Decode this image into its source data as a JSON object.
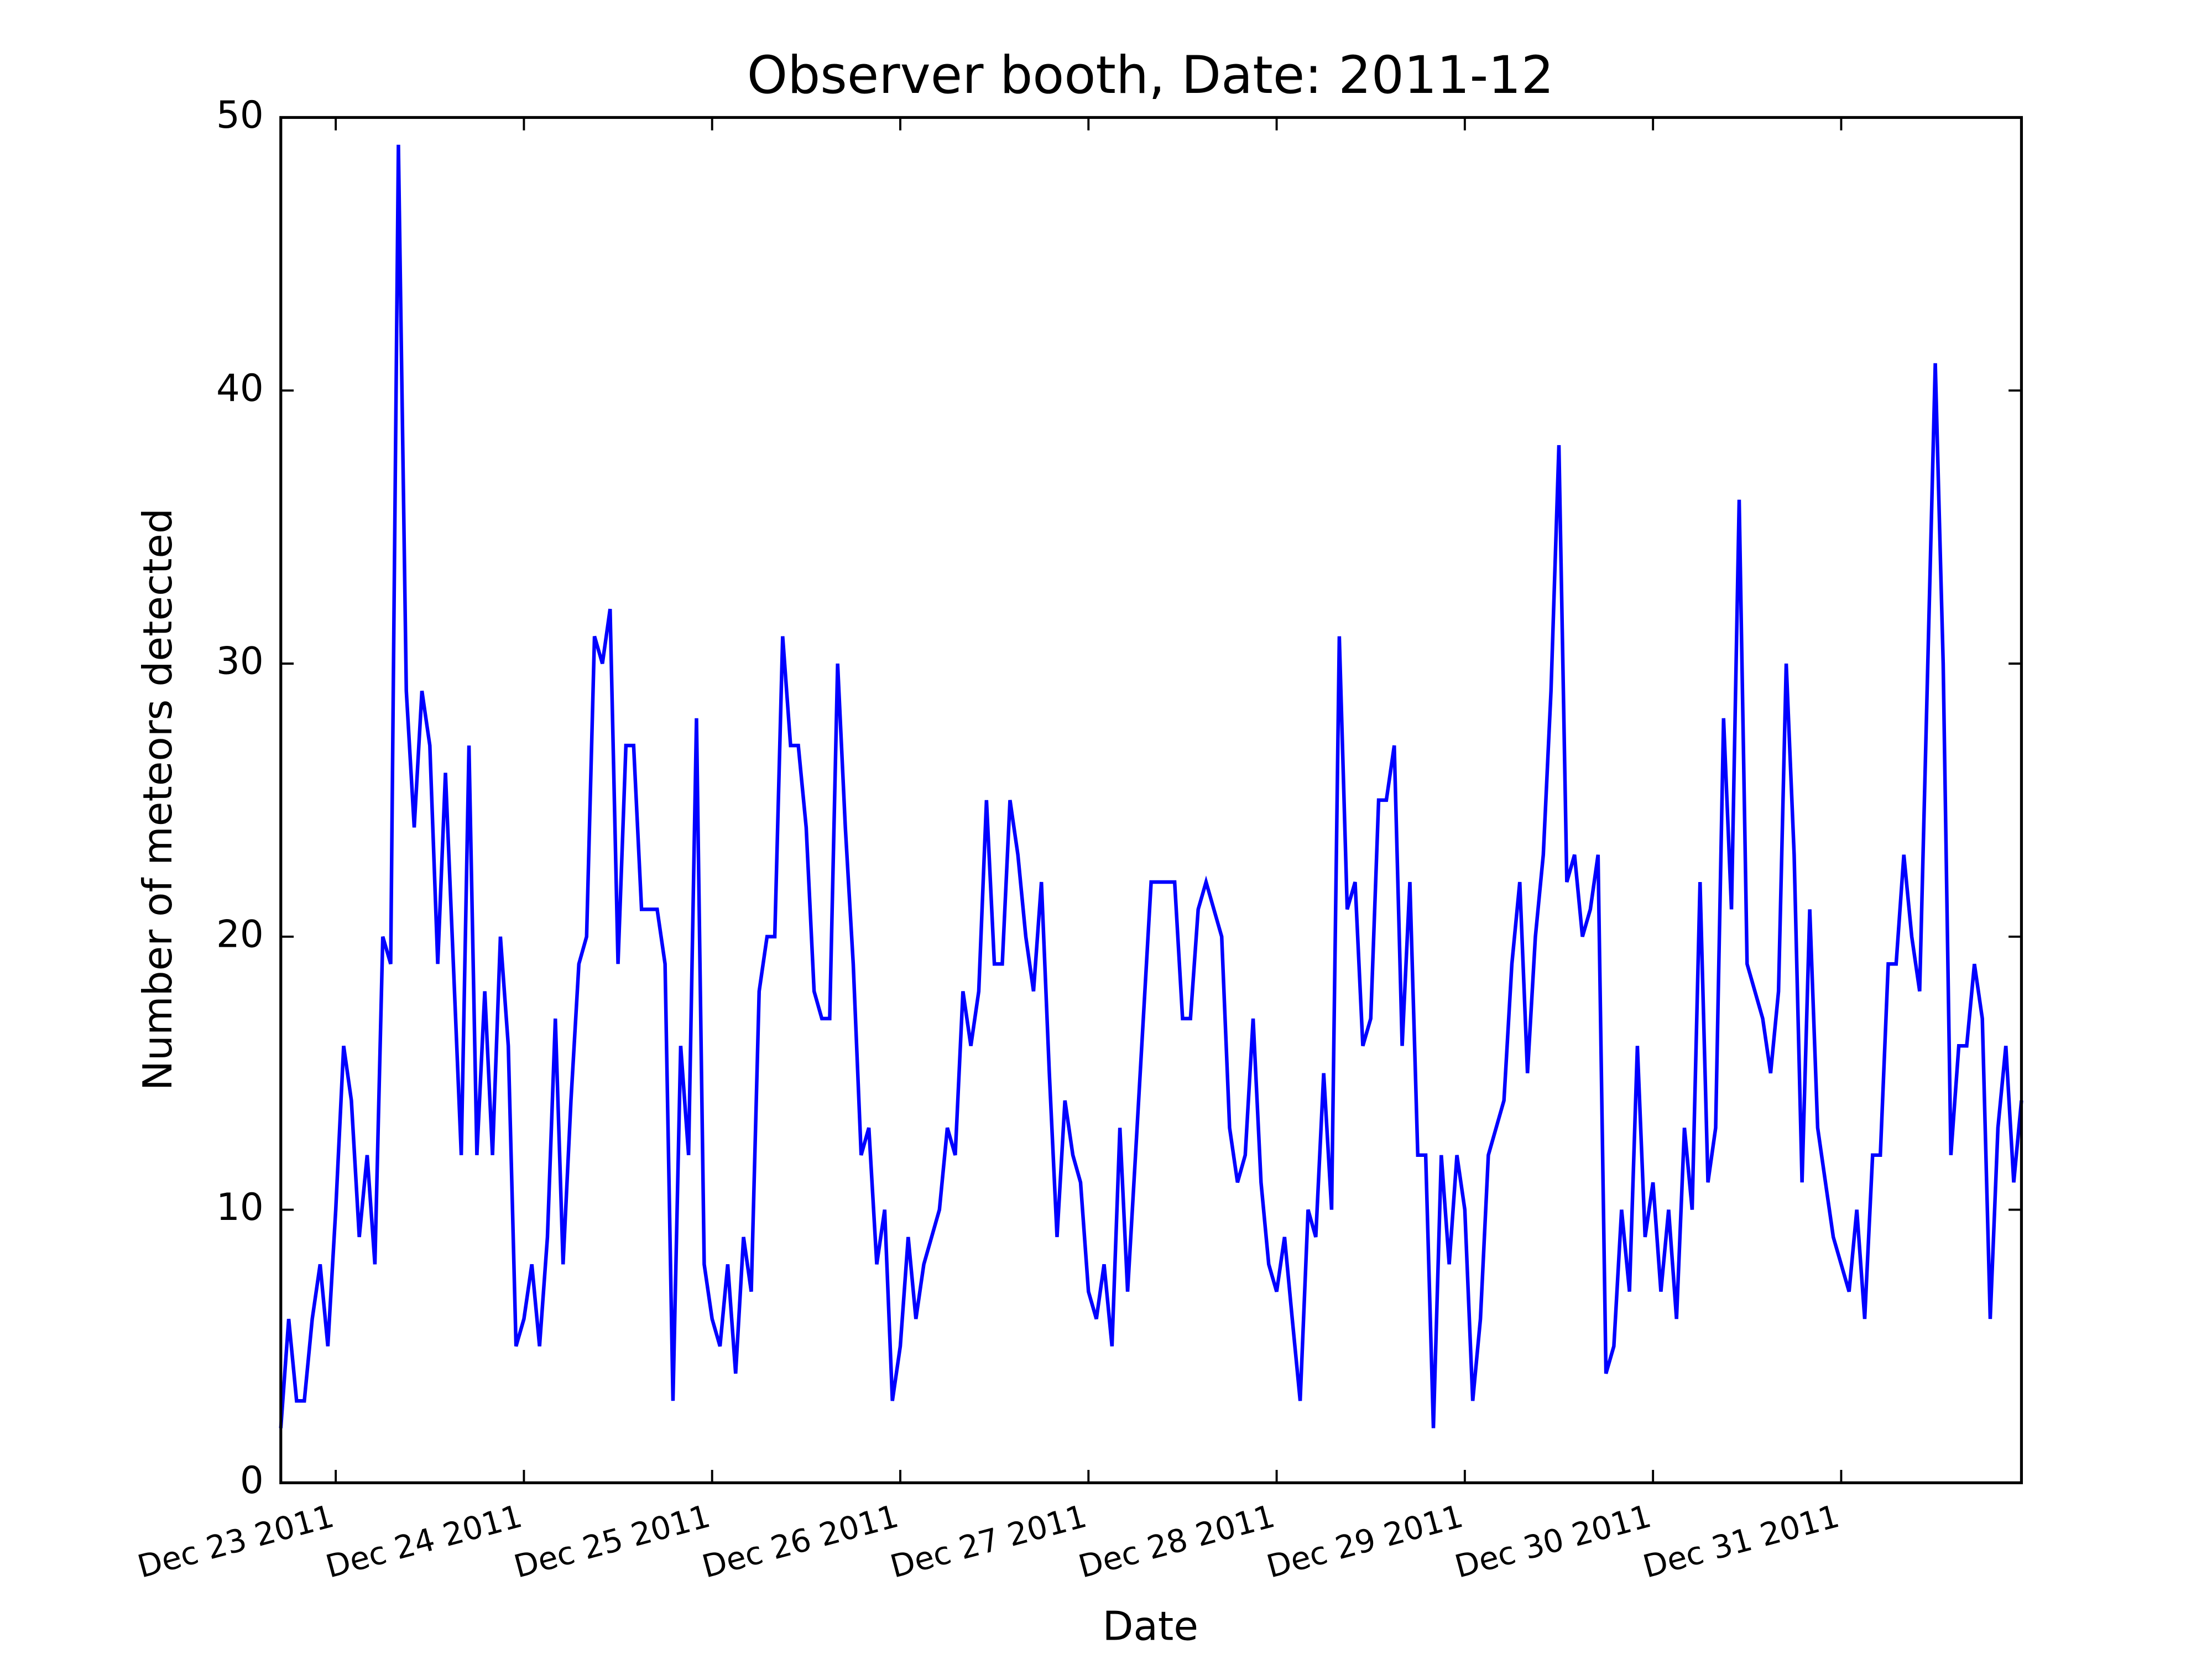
{
  "chart_data": {
    "type": "line",
    "title": "Observer booth, Date: 2011-12",
    "xlabel": "Date",
    "ylabel": "Number of meteors detected",
    "color": "#0000ff",
    "xlim": [
      22.708,
      31.958
    ],
    "ylim": [
      0,
      50
    ],
    "xticks": [
      {
        "value": 23,
        "label": "Dec 23 2011"
      },
      {
        "value": 24,
        "label": "Dec 24 2011"
      },
      {
        "value": 25,
        "label": "Dec 25 2011"
      },
      {
        "value": 26,
        "label": "Dec 26 2011"
      },
      {
        "value": 27,
        "label": "Dec 27 2011"
      },
      {
        "value": 28,
        "label": "Dec 28 2011"
      },
      {
        "value": 29,
        "label": "Dec 29 2011"
      },
      {
        "value": 30,
        "label": "Dec 30 2011"
      },
      {
        "value": 31,
        "label": "Dec 31 2011"
      }
    ],
    "yticks": [
      0,
      10,
      20,
      30,
      40,
      50
    ],
    "grid": false,
    "x": [
      22.708,
      22.75,
      22.792,
      22.833,
      22.875,
      22.917,
      22.958,
      23,
      23.042,
      23.083,
      23.125,
      23.167,
      23.208,
      23.25,
      23.292,
      23.333,
      23.375,
      23.417,
      23.458,
      23.5,
      23.542,
      23.583,
      23.625,
      23.667,
      23.708,
      23.75,
      23.792,
      23.833,
      23.875,
      23.917,
      23.958,
      24,
      24.042,
      24.083,
      24.125,
      24.167,
      24.208,
      24.25,
      24.292,
      24.333,
      24.375,
      24.417,
      24.458,
      24.5,
      24.542,
      24.583,
      24.625,
      24.667,
      24.708,
      24.75,
      24.792,
      24.833,
      24.875,
      24.917,
      24.958,
      25,
      25.042,
      25.083,
      25.125,
      25.167,
      25.208,
      25.25,
      25.292,
      25.333,
      25.375,
      25.417,
      25.458,
      25.5,
      25.542,
      25.583,
      25.625,
      25.667,
      25.708,
      25.75,
      25.792,
      25.833,
      25.875,
      25.917,
      25.958,
      26,
      26.042,
      26.083,
      26.125,
      26.208,
      26.25,
      26.292,
      26.333,
      26.375,
      26.417,
      26.458,
      26.5,
      26.542,
      26.583,
      26.625,
      26.667,
      26.708,
      26.75,
      26.792,
      26.833,
      26.875,
      26.917,
      26.958,
      27,
      27.042,
      27.083,
      27.125,
      27.167,
      27.208,
      27.25,
      27.333,
      27.375,
      27.417,
      27.458,
      27.5,
      27.542,
      27.583,
      27.625,
      27.708,
      27.75,
      27.792,
      27.833,
      27.875,
      27.917,
      27.958,
      28,
      28.042,
      28.083,
      28.125,
      28.167,
      28.208,
      28.25,
      28.292,
      28.333,
      28.375,
      28.417,
      28.458,
      28.5,
      28.542,
      28.583,
      28.625,
      28.667,
      28.708,
      28.75,
      28.792,
      28.833,
      28.875,
      28.917,
      28.958,
      29,
      29.042,
      29.083,
      29.125,
      29.208,
      29.25,
      29.292,
      29.333,
      29.375,
      29.417,
      29.458,
      29.5,
      29.542,
      29.583,
      29.625,
      29.667,
      29.708,
      29.75,
      29.792,
      29.833,
      29.875,
      29.917,
      29.958,
      30,
      30.042,
      30.083,
      30.125,
      30.167,
      30.208,
      30.25,
      30.292,
      30.333,
      30.375,
      30.417,
      30.458,
      30.5,
      30.583,
      30.625,
      30.667,
      30.708,
      30.75,
      30.792,
      30.833,
      30.875,
      30.958,
      31.042,
      31.083,
      31.125,
      31.167,
      31.208,
      31.25,
      31.292,
      31.333,
      31.375,
      31.417,
      31.5,
      31.542,
      31.583,
      31.625,
      31.667,
      31.708,
      31.75,
      31.792,
      31.833,
      31.875,
      31.917,
      31.958
    ],
    "values": [
      2,
      6,
      3,
      3,
      6,
      8,
      5,
      10,
      16,
      14,
      9,
      12,
      8,
      20,
      19,
      49,
      29,
      24,
      29,
      27,
      19,
      26,
      19,
      12,
      27,
      12,
      18,
      12,
      20,
      16,
      5,
      6,
      8,
      5,
      9,
      17,
      8,
      14,
      19,
      20,
      31,
      30,
      32,
      19,
      27,
      27,
      21,
      21,
      21,
      19,
      3,
      16,
      12,
      28,
      8,
      6,
      5,
      8,
      4,
      9,
      7,
      18,
      20,
      20,
      31,
      27,
      27,
      24,
      18,
      17,
      17,
      30,
      24,
      19,
      12,
      13,
      8,
      10,
      3,
      5,
      9,
      6,
      8,
      10,
      13,
      12,
      18,
      16,
      18,
      25,
      19,
      19,
      25,
      23,
      20,
      18,
      22,
      15,
      9,
      14,
      12,
      11,
      7,
      6,
      8,
      5,
      13,
      7,
      12,
      22,
      22,
      22,
      22,
      17,
      17,
      21,
      22,
      20,
      13,
      11,
      12,
      17,
      11,
      8,
      7,
      9,
      6,
      3,
      10,
      9,
      15,
      10,
      31,
      21,
      22,
      16,
      17,
      25,
      25,
      27,
      16,
      22,
      12,
      12,
      2,
      12,
      8,
      12,
      10,
      3,
      6,
      12,
      14,
      19,
      22,
      15,
      20,
      23,
      29,
      38,
      22,
      23,
      20,
      21,
      23,
      4,
      5,
      10,
      7,
      16,
      9,
      11,
      7,
      10,
      6,
      13,
      10,
      22,
      11,
      13,
      28,
      21,
      36,
      19,
      17,
      15,
      18,
      30,
      23,
      11,
      21,
      13,
      9,
      7,
      10,
      6,
      12,
      12,
      19,
      19,
      23,
      20,
      18,
      41,
      30,
      12,
      16,
      16,
      19,
      17,
      6,
      13,
      16,
      11,
      14
    ]
  }
}
